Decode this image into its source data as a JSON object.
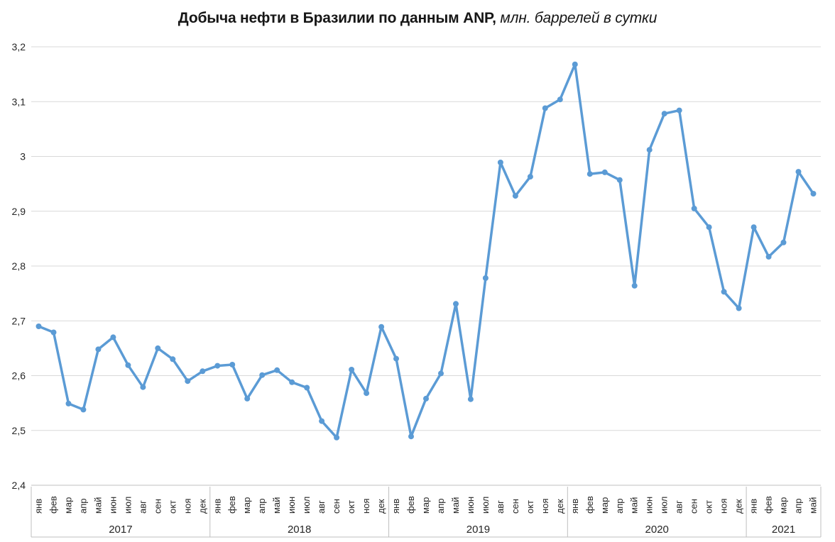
{
  "title": {
    "main": "Добыча нефти в Бразилии по данным ANP,",
    "sub": " млн. баррелей в сутки"
  },
  "chart_data": {
    "type": "line",
    "title": "Добыча нефти в Бразилии по данным ANP, млн. баррелей в сутки",
    "legend": "none",
    "grid": true,
    "marker": "circle",
    "line_color": "#5B9BD5",
    "gridline_color": "#D9D9D9",
    "axis_line_color": "#BFBFBF",
    "label_color": "#262626",
    "y_axis": {
      "min": 2.4,
      "max": 3.2,
      "step": 0.1,
      "tick_labels_top_to_bottom": [
        "3,2",
        "3,1",
        "3",
        "2,9",
        "2,8",
        "2,7",
        "2,6",
        "2,5",
        "2,4"
      ]
    },
    "x_axis": {
      "years": [
        {
          "year": "2017",
          "months": [
            "янв",
            "фев",
            "мар",
            "апр",
            "май",
            "июн",
            "июл",
            "авг",
            "сен",
            "окт",
            "ноя",
            "дек"
          ]
        },
        {
          "year": "2018",
          "months": [
            "янв",
            "фев",
            "мар",
            "апр",
            "май",
            "июн",
            "июл",
            "авг",
            "сен",
            "окт",
            "ноя",
            "дек"
          ]
        },
        {
          "year": "2019",
          "months": [
            "янв",
            "фев",
            "мар",
            "апр",
            "май",
            "июн",
            "июл",
            "авг",
            "сен",
            "окт",
            "ноя",
            "дек"
          ]
        },
        {
          "year": "2020",
          "months": [
            "янв",
            "фев",
            "мар",
            "апр",
            "май",
            "июн",
            "июл",
            "авг",
            "сен",
            "окт",
            "ноя",
            "дек"
          ]
        },
        {
          "year": "2021",
          "months": [
            "янв",
            "фев",
            "мар",
            "апр",
            "май"
          ]
        }
      ]
    },
    "series": [
      {
        "color": "#5B9BD5",
        "values": [
          2.69,
          2.679,
          2.549,
          2.538,
          2.648,
          2.67,
          2.619,
          2.579,
          2.65,
          2.63,
          2.59,
          2.608,
          2.618,
          2.62,
          2.558,
          2.601,
          2.61,
          2.588,
          2.578,
          2.517,
          2.487,
          2.611,
          2.568,
          2.689,
          2.631,
          2.489,
          2.558,
          2.604,
          2.731,
          2.557,
          2.778,
          2.989,
          2.928,
          2.963,
          3.088,
          3.104,
          3.168,
          2.968,
          2.971,
          2.957,
          2.764,
          3.012,
          3.078,
          3.084,
          2.905,
          2.871,
          2.753,
          2.723,
          2.871,
          2.817,
          2.843,
          2.972,
          2.932
        ]
      }
    ]
  }
}
